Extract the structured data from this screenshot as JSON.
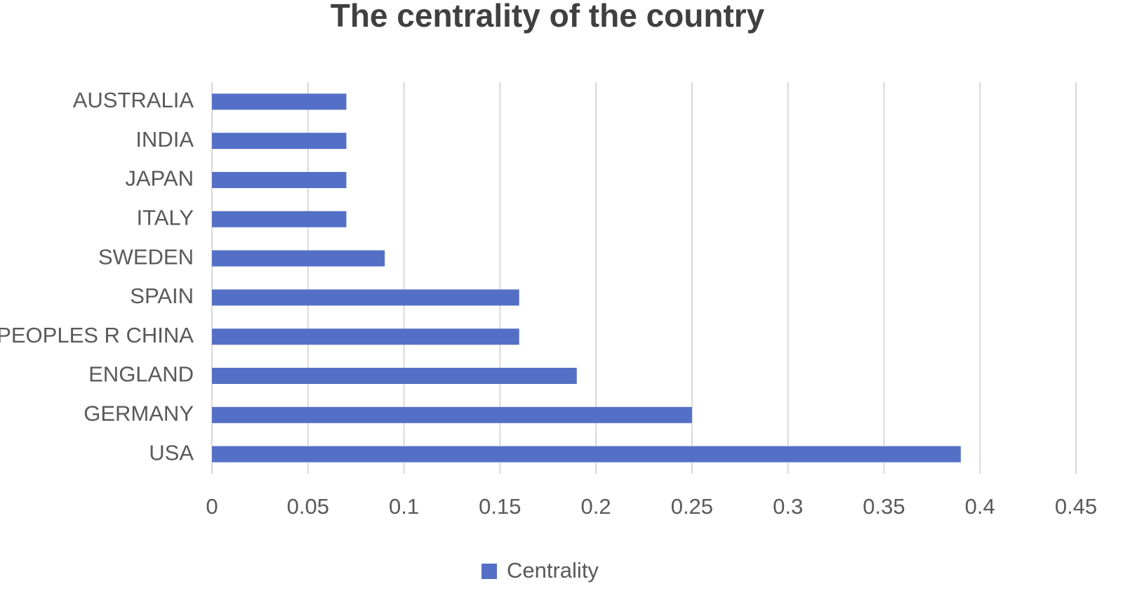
{
  "chart_data": {
    "type": "hbar",
    "title": "The centrality of the country",
    "categories": [
      "AUSTRALIA",
      "INDIA",
      "JAPAN",
      "ITALY",
      "SWEDEN",
      "SPAIN",
      "PEOPLES R CHINA",
      "ENGLAND",
      "GERMANY",
      "USA"
    ],
    "series": [
      {
        "name": "Centrality",
        "color": "#5470c6",
        "values": [
          0.07,
          0.07,
          0.07,
          0.07,
          0.09,
          0.16,
          0.16,
          0.19,
          0.25,
          0.39
        ]
      }
    ],
    "xlim": [
      0,
      0.45
    ],
    "xticks": [
      0,
      0.05,
      0.1,
      0.15,
      0.2,
      0.25,
      0.3,
      0.35,
      0.4,
      0.45
    ],
    "grid": true,
    "legend": "bottom"
  }
}
